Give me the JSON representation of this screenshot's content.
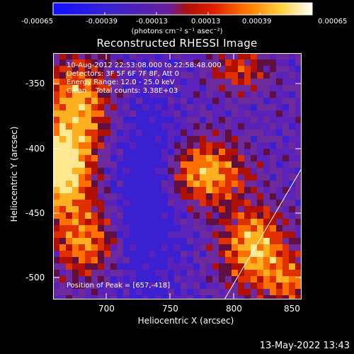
{
  "colorbar": {
    "tick_labels": [
      "-0.00065",
      "-0.00039",
      "-0.00013",
      "0.00013",
      "0.00039",
      "0.00065"
    ],
    "units": "(photons cm⁻² s⁻¹ asec⁻²)",
    "colors": [
      "#1010ff",
      "#4a1fc0",
      "#7a20a0",
      "#c01010",
      "#ff6a00",
      "#ffe080",
      "#ffffff"
    ]
  },
  "image": {
    "title": "Reconstructed RHESSI Image",
    "info_lines": [
      "10-Aug-2012 22:53:08.000 to 22:58:48.000",
      "Detectors: 3F 5F 6F 7F 8F, Att 0",
      "Energy Range: 12.0 - 25.0 keV",
      "Clean    Total counts: 3.38E+03"
    ],
    "peak_label": "Position of Peak = [657,-418]"
  },
  "axes": {
    "xlabel": "Heliocentric X (arcsec)",
    "ylabel": "Heliocentric Y (arcsec)",
    "x_ticks": [
      "700",
      "750",
      "800",
      "850"
    ],
    "y_ticks": [
      "-350",
      "-400",
      "-450",
      "-500"
    ]
  },
  "footer": {
    "timestamp": "13-May-2022 13:43"
  }
}
